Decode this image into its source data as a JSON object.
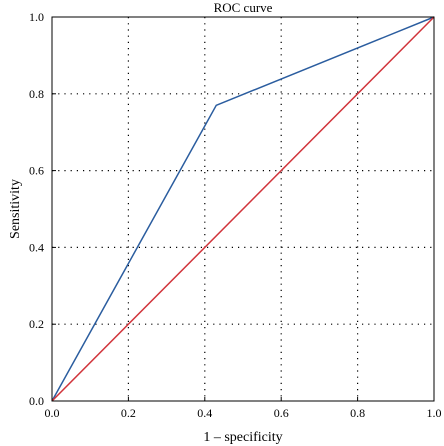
{
  "chart_data": {
    "type": "line",
    "title": "ROC curve",
    "xlabel": "1 – specificity",
    "ylabel": "Sensitivity",
    "xlim": [
      0.0,
      1.0
    ],
    "ylim": [
      0.0,
      1.0
    ],
    "x_ticks": [
      "0.0",
      "0.2",
      "0.4",
      "0.6",
      "0.8",
      "1.0"
    ],
    "y_ticks": [
      "0.0",
      "0.2",
      "0.4",
      "0.6",
      "0.8",
      "1.0"
    ],
    "grid": true,
    "grid_style": "dotted",
    "series": [
      {
        "color": "#2b5d9f",
        "x": [
          0.0,
          0.43,
          1.0
        ],
        "y": [
          0.0,
          0.77,
          1.0
        ]
      },
      {
        "color": "#d1343b",
        "x": [
          0.0,
          1.0
        ],
        "y": [
          0.0,
          1.0
        ]
      }
    ]
  }
}
